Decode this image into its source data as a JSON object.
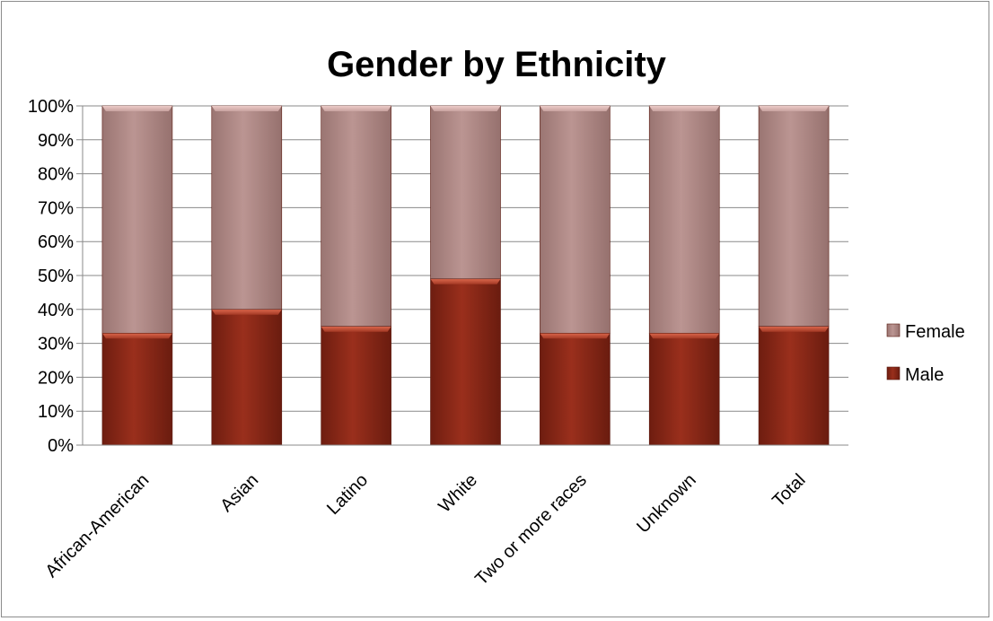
{
  "chart_data": {
    "type": "bar",
    "stacked": true,
    "percent": true,
    "title": "Gender by Ethnicity",
    "categories": [
      "African-American",
      "Asian",
      "Latino",
      "White",
      "Two or more races",
      "Unknown",
      "Total"
    ],
    "series": [
      {
        "name": "Male",
        "values": [
          33,
          40,
          35,
          49,
          33,
          33,
          35
        ],
        "color": "#8b2a18"
      },
      {
        "name": "Female",
        "values": [
          67,
          60,
          65,
          51,
          67,
          67,
          65
        ],
        "color": "#b38b88"
      }
    ],
    "ylim": [
      0,
      100
    ],
    "yticks": [
      "0%",
      "10%",
      "20%",
      "30%",
      "40%",
      "50%",
      "60%",
      "70%",
      "80%",
      "90%",
      "100%"
    ],
    "grid": true,
    "legend": {
      "position": "right",
      "items": [
        "Female",
        "Male"
      ]
    }
  }
}
